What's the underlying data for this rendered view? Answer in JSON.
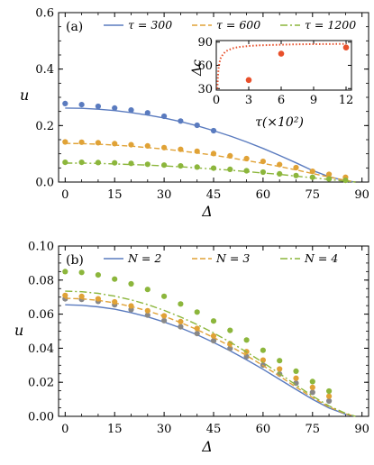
{
  "colors": {
    "blue": "#5a7bbf",
    "orange": "#e0a236",
    "green": "#8cb63c",
    "gray": "#888888",
    "inset_dots": "#e8502b",
    "inset_curve": "#e8502b"
  },
  "chart_data": [
    {
      "type": "line",
      "panel_label": "(a)",
      "xlabel": "Δ",
      "ylabel": "u",
      "xlim": [
        -2,
        92
      ],
      "ylim": [
        0,
        0.6
      ],
      "xticks": [
        "0",
        "15",
        "30",
        "45",
        "60",
        "75",
        "90"
      ],
      "yticks": [
        "0.0",
        "0.2",
        "0.4",
        "0.6"
      ],
      "legend_position": "top",
      "series": [
        {
          "name": "τ = 300",
          "style": "solid",
          "color": "blue",
          "x": [
            0,
            5,
            10,
            15,
            20,
            25,
            30,
            35,
            40,
            45,
            50,
            55,
            60,
            65,
            70,
            75,
            80,
            85,
            88
          ],
          "y": [
            0.262,
            0.261,
            0.258,
            0.253,
            0.246,
            0.237,
            0.227,
            0.214,
            0.199,
            0.182,
            0.163,
            0.142,
            0.119,
            0.094,
            0.068,
            0.041,
            0.019,
            0.004,
            0.0
          ],
          "points": {
            "x": [
              0,
              5,
              10,
              15,
              20,
              25,
              30,
              35,
              40,
              45
            ],
            "y": [
              0.278,
              0.274,
              0.268,
              0.262,
              0.255,
              0.245,
              0.233,
              0.216,
              0.201,
              0.182
            ]
          }
        },
        {
          "name": "τ = 600",
          "style": "dashed",
          "color": "orange",
          "x": [
            0,
            5,
            10,
            15,
            20,
            25,
            30,
            35,
            40,
            45,
            50,
            55,
            60,
            65,
            70,
            75,
            80,
            85,
            88
          ],
          "y": [
            0.137,
            0.136,
            0.134,
            0.131,
            0.127,
            0.122,
            0.117,
            0.11,
            0.103,
            0.095,
            0.086,
            0.076,
            0.066,
            0.055,
            0.043,
            0.03,
            0.018,
            0.006,
            0.0
          ],
          "points": {
            "x": [
              0,
              5,
              10,
              15,
              20,
              25,
              30,
              35,
              40,
              45,
              50,
              55,
              60,
              65,
              70,
              75,
              80,
              85
            ],
            "y": [
              0.142,
              0.141,
              0.139,
              0.136,
              0.132,
              0.128,
              0.122,
              0.116,
              0.109,
              0.101,
              0.093,
              0.083,
              0.073,
              0.062,
              0.051,
              0.038,
              0.027,
              0.017
            ]
          }
        },
        {
          "name": "τ = 1200",
          "style": "dashdot",
          "color": "green",
          "x": [
            0,
            5,
            10,
            15,
            20,
            25,
            30,
            35,
            40,
            45,
            50,
            55,
            60,
            65,
            70,
            75,
            80,
            85,
            88
          ],
          "y": [
            0.067,
            0.067,
            0.066,
            0.064,
            0.062,
            0.06,
            0.057,
            0.054,
            0.05,
            0.046,
            0.042,
            0.037,
            0.032,
            0.027,
            0.021,
            0.015,
            0.009,
            0.003,
            0.0
          ],
          "points": {
            "x": [
              0,
              5,
              10,
              15,
              20,
              25,
              30,
              35,
              40,
              45,
              50,
              55,
              60,
              65,
              70,
              75,
              80,
              85
            ],
            "y": [
              0.07,
              0.07,
              0.069,
              0.068,
              0.066,
              0.063,
              0.06,
              0.057,
              0.053,
              0.049,
              0.045,
              0.04,
              0.035,
              0.029,
              0.023,
              0.017,
              0.011,
              0.006
            ]
          }
        }
      ],
      "inset": {
        "xlabel": "τ(×10²)",
        "ylabel": "Δc",
        "xlim": [
          0,
          12.5
        ],
        "ylim": [
          28,
          92
        ],
        "xticks": [
          "0",
          "3",
          "6",
          "9",
          "12"
        ],
        "yticks": [
          "30",
          "60",
          "90"
        ],
        "curve": {
          "x": [
            0.1,
            0.15,
            0.2,
            0.3,
            0.4,
            0.6,
            0.8,
            1.0,
            1.5,
            2,
            3,
            4,
            5,
            6,
            7,
            8,
            9,
            10,
            11,
            12
          ],
          "y": [
            30,
            45,
            55,
            64,
            69,
            74,
            77,
            79,
            82,
            83.5,
            85,
            85.8,
            86.3,
            86.7,
            87,
            87.2,
            87.4,
            87.5,
            87.6,
            87.7
          ]
        },
        "points": {
          "x": [
            3,
            6,
            12
          ],
          "y": [
            41,
            75,
            83
          ]
        }
      }
    },
    {
      "type": "line",
      "panel_label": "(b)",
      "xlabel": "Δ",
      "ylabel": "u",
      "xlim": [
        -2,
        92
      ],
      "ylim": [
        0,
        0.1
      ],
      "xticks": [
        "0",
        "15",
        "30",
        "45",
        "60",
        "75",
        "90"
      ],
      "yticks": [
        "0.00",
        "0.02",
        "0.04",
        "0.06",
        "0.08",
        "0.10"
      ],
      "legend_position": "top",
      "series": [
        {
          "name": "N = 2",
          "style": "solid",
          "color": "blue",
          "x": [
            0,
            5,
            10,
            15,
            20,
            25,
            30,
            35,
            40,
            45,
            50,
            55,
            60,
            65,
            70,
            75,
            80,
            85,
            88
          ],
          "y": [
            0.0655,
            0.0652,
            0.0643,
            0.0629,
            0.0609,
            0.0584,
            0.0554,
            0.0519,
            0.0479,
            0.0434,
            0.0385,
            0.0332,
            0.0276,
            0.0217,
            0.0158,
            0.01,
            0.0049,
            0.0012,
            0.0
          ],
          "points": {
            "x": [
              0,
              5,
              10,
              15,
              20,
              25,
              30,
              35,
              40,
              45,
              50,
              55,
              60,
              65,
              70,
              75,
              80
            ],
            "y": [
              0.069,
              0.0687,
              0.0675,
              0.0655,
              0.0627,
              0.0594,
              0.0562,
              0.0526,
              0.0486,
              0.0444,
              0.0399,
              0.0351,
              0.0301,
              0.0248,
              0.0195,
              0.0141,
              0.009
            ],
            "color": "gray"
          }
        },
        {
          "name": "N = 3",
          "style": "dashed",
          "color": "orange",
          "x": [
            0,
            5,
            10,
            15,
            20,
            25,
            30,
            35,
            40,
            45,
            50,
            55,
            60,
            65,
            70,
            75,
            80,
            85,
            88
          ],
          "y": [
            0.0693,
            0.069,
            0.0681,
            0.0666,
            0.0645,
            0.0619,
            0.0588,
            0.0551,
            0.0509,
            0.0463,
            0.0412,
            0.0357,
            0.0298,
            0.0236,
            0.0172,
            0.011,
            0.0055,
            0.0015,
            0.0
          ],
          "points": {
            "x": [
              0,
              5,
              10,
              15,
              20,
              25,
              30,
              35,
              40,
              45,
              50,
              55,
              60,
              65,
              70,
              75,
              80
            ],
            "y": [
              0.071,
              0.0704,
              0.069,
              0.0672,
              0.0648,
              0.062,
              0.059,
              0.0556,
              0.0516,
              0.0472,
              0.0427,
              0.038,
              0.033,
              0.0278,
              0.0224,
              0.017,
              0.0118
            ]
          }
        },
        {
          "name": "N = 4",
          "style": "dashdot",
          "color": "green",
          "x": [
            0,
            5,
            10,
            15,
            20,
            25,
            30,
            35,
            40,
            45,
            50,
            55,
            60,
            65,
            70,
            75,
            80,
            85,
            88
          ],
          "y": [
            0.0735,
            0.0732,
            0.0722,
            0.0706,
            0.0684,
            0.0656,
            0.0622,
            0.0583,
            0.0539,
            0.049,
            0.0436,
            0.0378,
            0.0316,
            0.0251,
            0.0184,
            0.0119,
            0.0061,
            0.0018,
            0.0
          ],
          "points": {
            "x": [
              0,
              5,
              10,
              15,
              20,
              25,
              30,
              35,
              40,
              45,
              50,
              55,
              60,
              65,
              70,
              75,
              80
            ],
            "y": [
              0.085,
              0.0845,
              0.083,
              0.0806,
              0.0778,
              0.0745,
              0.0705,
              0.066,
              0.0612,
              0.056,
              0.0505,
              0.0448,
              0.0388,
              0.0327,
              0.0265,
              0.0204,
              0.0148
            ]
          }
        }
      ]
    }
  ]
}
